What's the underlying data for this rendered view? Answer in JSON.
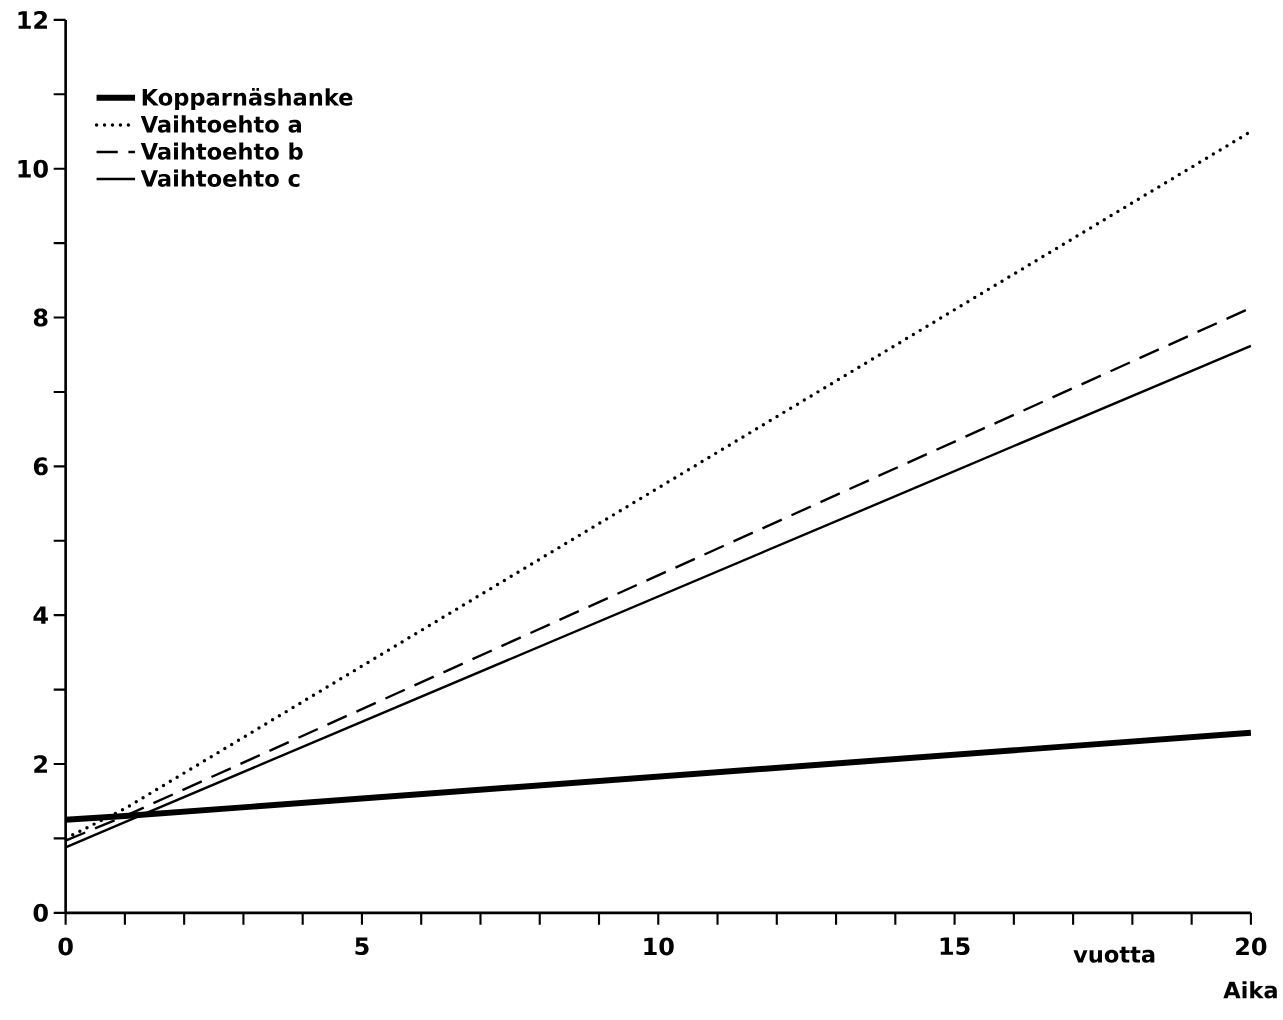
{
  "chart_data": {
    "type": "line",
    "xlabel": "Aika",
    "annotations": [
      "vuotta"
    ],
    "x": [
      0,
      1,
      20
    ],
    "xlim": [
      0,
      20
    ],
    "ylim": [
      0,
      12
    ],
    "xticks": [
      0,
      {
        "value": 1,
        "label": null
      },
      {
        "value": 2,
        "label": null
      },
      {
        "value": 3,
        "label": null
      },
      {
        "value": 4,
        "label": null
      },
      5,
      {
        "value": 6,
        "label": null
      },
      {
        "value": 7,
        "label": null
      },
      {
        "value": 8,
        "label": null
      },
      {
        "value": 9,
        "label": null
      },
      10,
      {
        "value": 11,
        "label": null
      },
      {
        "value": 12,
        "label": null
      },
      {
        "value": 13,
        "label": null
      },
      {
        "value": 14,
        "label": null
      },
      15,
      {
        "value": 16,
        "label": null
      },
      {
        "value": 17,
        "label": null
      },
      {
        "value": 18,
        "label": null
      },
      {
        "value": 19,
        "label": null
      },
      20
    ],
    "yticks": [
      0,
      {
        "value": 1,
        "label": null
      },
      2,
      {
        "value": 3,
        "label": null
      },
      4,
      {
        "value": 5,
        "label": null
      },
      6,
      {
        "value": 7,
        "label": null
      },
      8,
      {
        "value": 9,
        "label": null
      },
      10,
      {
        "value": 11,
        "label": null
      },
      12
    ],
    "legend": "top left",
    "grid": false,
    "marker": "none",
    "series": [
      {
        "name": "Kopparnäshanke",
        "color": "#000000",
        "line_style": "solid",
        "values": [
          1.25,
          1.3,
          2.42
        ]
      },
      {
        "name": "Vaihtoehto  a",
        "color": "#000000",
        "line_style": "dotted",
        "values": [
          1.0,
          1.4,
          10.5
        ]
      },
      {
        "name": "Vaihtoehto  b",
        "color": "#000000",
        "line_style": "dashed",
        "values": [
          0.97,
          1.3,
          8.13
        ]
      },
      {
        "name": "Vaihtoehto  c",
        "color": "#000000",
        "line_style": "solid",
        "values": [
          0.88,
          1.22,
          7.62
        ]
      }
    ]
  }
}
